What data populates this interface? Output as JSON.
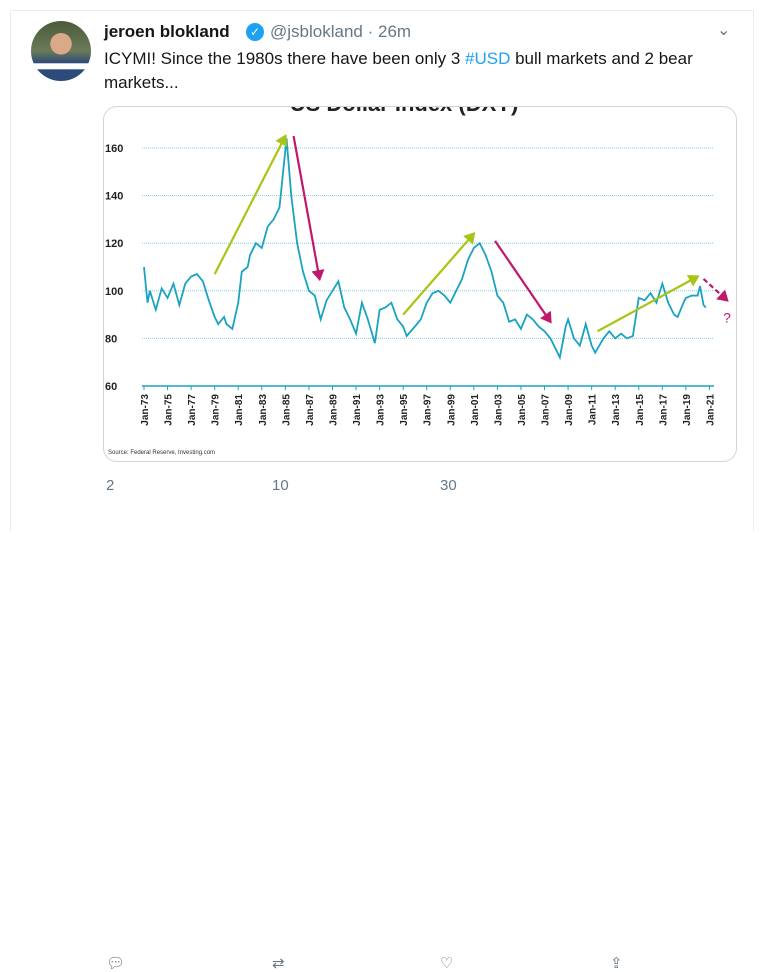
{
  "tweet": {
    "name": "jeroen blokland",
    "handle": "@jsblokland",
    "time": "26m",
    "separator": "·",
    "text_before": "ICYMI! Since the 1980s there have been only 3 ",
    "hashtag": "#USD",
    "text_after": " bull markets and 2 bear markets...",
    "replies": "2",
    "retweets": "10",
    "likes": "30"
  },
  "icons": {
    "verified": "verified-badge-icon",
    "more": "chevron-down-icon",
    "reply": "reply-icon",
    "retweet": "retweet-icon",
    "like": "heart-icon",
    "share": "share-icon"
  },
  "colors": {
    "accent": "#1da1f2",
    "line": "#1aa3c0",
    "bull": "#a8c414",
    "bear": "#c0186c"
  },
  "chart_data": {
    "type": "line",
    "title": "US Dollar Index (DXY)",
    "source": "Source: Federal Reserve, Investing.com",
    "ylim": [
      60,
      165
    ],
    "yticks": [
      60,
      80,
      100,
      120,
      140,
      160
    ],
    "grid": true,
    "xticks": [
      "Jan-73",
      "Jan-75",
      "Jan-77",
      "Jan-79",
      "Jan-81",
      "Jan-83",
      "Jan-85",
      "Jan-87",
      "Jan-89",
      "Jan-91",
      "Jan-93",
      "Jan-95",
      "Jan-97",
      "Jan-99",
      "Jan-01",
      "Jan-03",
      "Jan-05",
      "Jan-07",
      "Jan-09",
      "Jan-11",
      "Jan-13",
      "Jan-15",
      "Jan-17",
      "Jan-19",
      "Jan-21"
    ],
    "x": [
      1973,
      1973.3,
      1973.5,
      1974,
      1974.5,
      1975,
      1975.5,
      1976,
      1976.5,
      1977,
      1977.5,
      1978,
      1978.5,
      1979,
      1979.3,
      1979.8,
      1980,
      1980.5,
      1981,
      1981.3,
      1981.8,
      1982,
      1982.5,
      1983,
      1983.5,
      1984,
      1984.5,
      1985.1,
      1985.5,
      1986,
      1986.5,
      1987,
      1987.5,
      1988,
      1988.5,
      1989,
      1989.5,
      1990,
      1990.5,
      1991,
      1991.5,
      1992,
      1992.6,
      1993,
      1993.5,
      1994,
      1994.5,
      1995,
      1995.3,
      1996,
      1996.5,
      1997,
      1997.5,
      1998,
      1998.5,
      1999,
      1999.5,
      2000,
      2000.5,
      2001,
      2001.5,
      2002,
      2002.5,
      2003,
      2003.5,
      2004,
      2004.5,
      2005,
      2005.5,
      2006,
      2006.5,
      2007,
      2007.5,
      2008,
      2008.3,
      2008.8,
      2009,
      2009.5,
      2010,
      2010.5,
      2011,
      2011.3,
      2012,
      2012.5,
      2013,
      2013.5,
      2014,
      2014.5,
      2015,
      2015.5,
      2016,
      2016.5,
      2017,
      2017.5,
      2018,
      2018.3,
      2018.8,
      2019,
      2019.5,
      2020,
      2020.2,
      2020.5,
      2020.7
    ],
    "y": [
      110,
      95,
      100,
      92,
      101,
      97,
      103,
      94,
      103,
      106,
      107,
      104,
      96,
      89,
      86,
      89,
      86,
      84,
      95,
      108,
      110,
      115,
      120,
      118,
      127,
      130,
      135,
      164,
      140,
      120,
      108,
      100,
      98,
      88,
      96,
      100,
      104,
      93,
      88,
      82,
      95,
      88,
      78,
      92,
      93,
      95,
      88,
      85,
      81,
      85,
      88,
      95,
      99,
      100,
      98,
      95,
      100,
      105,
      113,
      118,
      120,
      115,
      108,
      98,
      95,
      87,
      88,
      84,
      90,
      88,
      85,
      83,
      80,
      75,
      72,
      85,
      88,
      80,
      77,
      86,
      77,
      74,
      80,
      83,
      80,
      82,
      80,
      81,
      97,
      96,
      99,
      95,
      103,
      95,
      90,
      89,
      95,
      97,
      98,
      98,
      102,
      94,
      93
    ],
    "annotations": [
      {
        "type": "bull",
        "from": [
          1979,
          107
        ],
        "to": [
          1985,
          165
        ]
      },
      {
        "type": "bear",
        "from": [
          1985.7,
          165
        ],
        "to": [
          1987.9,
          105
        ]
      },
      {
        "type": "bull",
        "from": [
          1995,
          90
        ],
        "to": [
          2001,
          124
        ]
      },
      {
        "type": "bear",
        "from": [
          2002.8,
          121
        ],
        "to": [
          2007.5,
          87
        ]
      },
      {
        "type": "bull",
        "from": [
          2011.5,
          83
        ],
        "to": [
          2020,
          106
        ]
      },
      {
        "type": "bear-dashed",
        "from": [
          2020.5,
          105
        ],
        "to": [
          2022.5,
          96
        ],
        "label": "?"
      }
    ]
  }
}
